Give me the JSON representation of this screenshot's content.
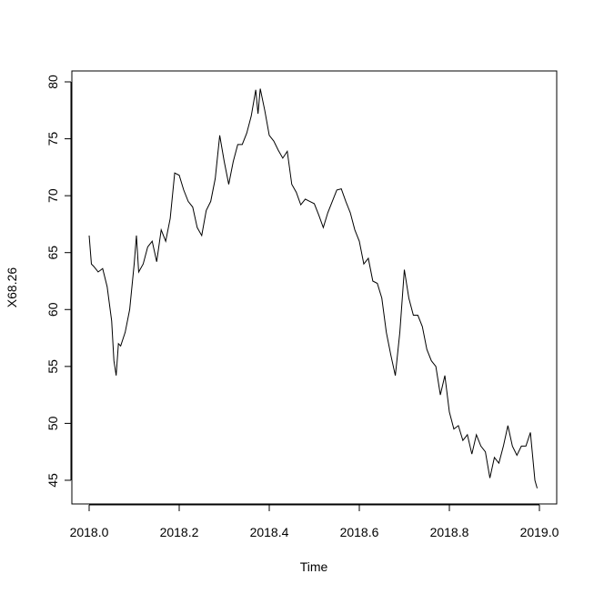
{
  "chart_data": {
    "type": "line",
    "x_label": "Time",
    "y_label": "X68.26",
    "x": [
      2018.0,
      2018.005,
      2018.01,
      2018.02,
      2018.03,
      2018.04,
      2018.05,
      2018.055,
      2018.06,
      2018.065,
      2018.07,
      2018.08,
      2018.09,
      2018.1,
      2018.105,
      2018.11,
      2018.12,
      2018.13,
      2018.14,
      2018.15,
      2018.16,
      2018.17,
      2018.18,
      2018.19,
      2018.2,
      2018.21,
      2018.22,
      2018.23,
      2018.24,
      2018.25,
      2018.26,
      2018.27,
      2018.28,
      2018.29,
      2018.3,
      2018.31,
      2018.32,
      2018.33,
      2018.34,
      2018.35,
      2018.36,
      2018.37,
      2018.375,
      2018.38,
      2018.39,
      2018.4,
      2018.41,
      2018.42,
      2018.43,
      2018.44,
      2018.45,
      2018.46,
      2018.47,
      2018.48,
      2018.49,
      2018.5,
      2018.51,
      2018.52,
      2018.53,
      2018.54,
      2018.55,
      2018.56,
      2018.57,
      2018.58,
      2018.59,
      2018.6,
      2018.61,
      2018.62,
      2018.63,
      2018.64,
      2018.65,
      2018.66,
      2018.67,
      2018.68,
      2018.69,
      2018.7,
      2018.71,
      2018.72,
      2018.73,
      2018.74,
      2018.75,
      2018.76,
      2018.77,
      2018.78,
      2018.79,
      2018.8,
      2018.81,
      2018.82,
      2018.83,
      2018.84,
      2018.85,
      2018.86,
      2018.87,
      2018.88,
      2018.89,
      2018.9,
      2018.91,
      2018.92,
      2018.93,
      2018.94,
      2018.95,
      2018.96,
      2018.97,
      2018.98,
      2018.99,
      2018.995
    ],
    "series": [
      {
        "color": "#000000",
        "values": [
          66.5,
          64,
          63.8,
          63.3,
          63.6,
          62,
          59,
          55.5,
          54.2,
          57,
          56.8,
          58,
          60,
          64,
          66.5,
          63.3,
          64,
          65.5,
          66,
          64.2,
          67,
          66,
          68,
          72,
          71.8,
          70.5,
          69.5,
          69,
          67.2,
          66.5,
          68.7,
          69.5,
          71.5,
          75.3,
          73,
          71,
          73,
          74.5,
          74.5,
          75.5,
          77,
          79.3,
          77.2,
          79.4,
          77.5,
          75.3,
          74.8,
          74,
          73.3,
          73.9,
          71,
          70.3,
          69.2,
          69.7,
          69.5,
          69.3,
          68.3,
          67.2,
          68.5,
          69.5,
          70.5,
          70.6,
          69.5,
          68.5,
          67,
          66,
          64,
          64.5,
          62.5,
          62.3,
          61,
          58,
          56,
          54.2,
          58,
          63.5,
          61,
          59.5,
          59.5,
          58.5,
          56.5,
          55.5,
          55,
          52.5,
          54.2,
          51,
          49.5,
          49.8,
          48.5,
          49,
          47.3,
          49,
          48,
          47.5,
          45.2,
          47,
          46.5,
          48,
          49.8,
          48,
          47.2,
          48,
          48,
          49.2,
          45,
          44.3
        ]
      }
    ],
    "xlim": [
      2017.9616,
      2019.0384
    ],
    "ylim": [
      42.92,
      80.96
    ],
    "xticks": [
      {
        "value": 2018,
        "label": "2018.0"
      },
      2018.2,
      2018.4,
      2018.6,
      2018.8,
      {
        "value": 2019,
        "label": "2019.0"
      }
    ],
    "yticks": [
      45,
      50,
      55,
      60,
      65,
      70,
      75,
      80
    ]
  }
}
